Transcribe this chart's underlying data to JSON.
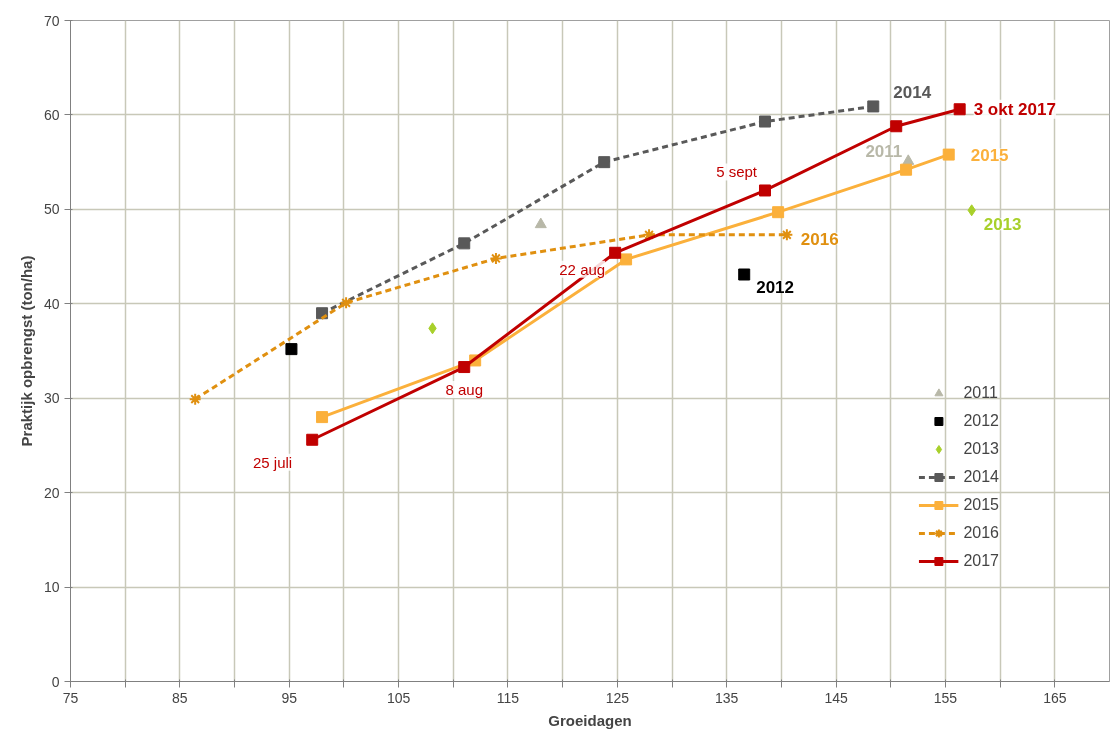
{
  "chart_data": {
    "type": "line",
    "xlabel": "Groeidagen",
    "ylabel": "Praktijk opbrengst (ton/ha)",
    "xlim": [
      75,
      170
    ],
    "ylim": [
      0,
      70
    ],
    "xticks": [
      75,
      {
        "value": 80,
        "label": null
      },
      85,
      {
        "value": 90,
        "label": null
      },
      95,
      {
        "value": 100,
        "label": null
      },
      105,
      {
        "value": 110,
        "label": null
      },
      115,
      {
        "value": 120,
        "label": null
      },
      125,
      {
        "value": 130,
        "label": null
      },
      135,
      {
        "value": 140,
        "label": null
      },
      145,
      {
        "value": 150,
        "label": null
      },
      155,
      {
        "value": 160,
        "label": null
      },
      165
    ],
    "yticks": [
      0,
      10,
      20,
      30,
      40,
      50,
      60,
      70
    ],
    "grid": true,
    "legend": "bottom right",
    "series": [
      {
        "name": "2011",
        "type": "scatter",
        "marker": "triangle",
        "color": "#b8b8a8",
        "x": [
          118,
          151.6
        ],
        "values": [
          48.4,
          55.1
        ]
      },
      {
        "name": "2012",
        "type": "scatter",
        "marker": "square",
        "color": "#000000",
        "x": [
          95.2,
          136.6
        ],
        "values": [
          35.2,
          43.1
        ]
      },
      {
        "name": "2013",
        "type": "scatter",
        "marker": "diamond",
        "color": "#a8d02a",
        "x": [
          108.1,
          157.4
        ],
        "values": [
          37.4,
          49.9
        ]
      },
      {
        "name": "2014",
        "marker": "square",
        "line_style": "dashed",
        "color": "#595959",
        "x": [
          98,
          111,
          123.8,
          138.5,
          148.4
        ],
        "values": [
          39.0,
          46.4,
          55.0,
          59.3,
          60.9
        ]
      },
      {
        "name": "2015",
        "marker": "square",
        "line_style": "solid",
        "color": "#fbb03b",
        "x": [
          98,
          112,
          125.8,
          139.7,
          151.4,
          155.3
        ],
        "values": [
          28.0,
          34.0,
          44.7,
          49.7,
          54.2,
          55.8
        ]
      },
      {
        "name": "2016",
        "marker": "cross",
        "line_style": "dashed",
        "color": "#e09010",
        "x": [
          86.4,
          100.2,
          113.9,
          127.9,
          140.5
        ],
        "values": [
          29.9,
          40.1,
          44.8,
          47.3,
          47.3
        ]
      },
      {
        "name": "2017",
        "marker": "square",
        "line_style": "solid",
        "color": "#c00000",
        "x": [
          97.1,
          111,
          124.8,
          138.5,
          150.5,
          156.3
        ],
        "values": [
          25.6,
          33.3,
          45.4,
          52.0,
          58.8,
          60.6
        ]
      }
    ],
    "annotations": [
      {
        "text": "25 juli",
        "x": 97.1,
        "y": 25.6
      },
      {
        "text": "8 aug",
        "x": 111,
        "y": 33.3
      },
      {
        "text": "22 aug",
        "x": 124.8,
        "y": 45.4
      },
      {
        "text": "5 sept",
        "x": 138.5,
        "y": 52.0
      },
      {
        "text": "3 okt 2017",
        "x": 156.3,
        "y": 60.6
      },
      {
        "text": "2014",
        "x": 148.4,
        "y": 60.9
      },
      {
        "text": "2015",
        "x": 155.3,
        "y": 55.8
      },
      {
        "text": "2016",
        "x": 140.5,
        "y": 47.3
      },
      {
        "text": "2013",
        "x": 157.4,
        "y": 49.9
      },
      {
        "text": "2012",
        "x": 136.6,
        "y": 43.1
      },
      {
        "text": "2011",
        "x": 151.6,
        "y": 55.1
      }
    ]
  }
}
